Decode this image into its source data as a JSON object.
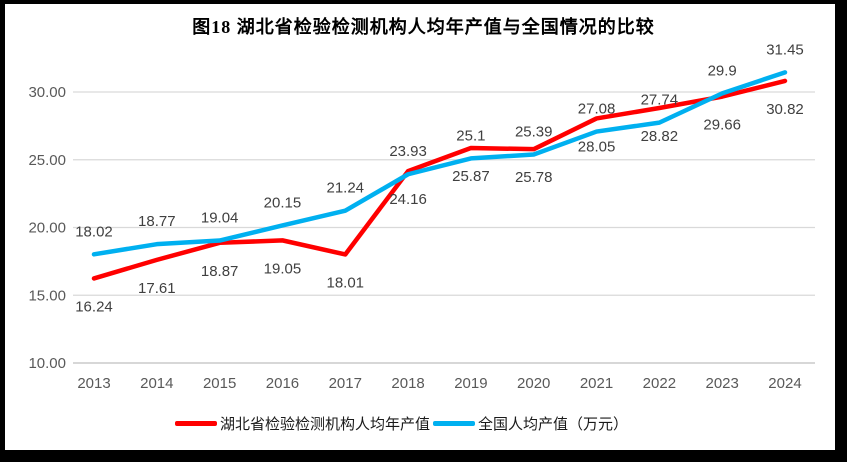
{
  "chart_data": {
    "type": "line",
    "title": "图18  湖北省检验检测机构人均年产值与全国情况的比较",
    "categories": [
      "2013",
      "2014",
      "2015",
      "2016",
      "2017",
      "2018",
      "2019",
      "2020",
      "2021",
      "2022",
      "2023",
      "2024"
    ],
    "series": [
      {
        "name": "湖北省检验检测机构人均年产值",
        "color": "#FF0000",
        "label_position": "below",
        "values": [
          16.24,
          17.61,
          18.87,
          19.05,
          18.01,
          24.16,
          25.87,
          25.78,
          28.05,
          28.82,
          29.66,
          30.82
        ],
        "labels": [
          "16.24",
          "17.61",
          "18.87",
          "19.05",
          "18.01",
          "24.16",
          "25.87",
          "25.78",
          "28.05",
          "28.82",
          "29.66",
          "30.82"
        ]
      },
      {
        "name": "全国人均产值（万元）",
        "color": "#00B0F0",
        "label_position": "above",
        "values": [
          18.02,
          18.77,
          19.04,
          20.15,
          21.24,
          23.93,
          25.1,
          25.39,
          27.08,
          27.74,
          29.9,
          31.45
        ],
        "labels": [
          "18.02",
          "18.77",
          "19.04",
          "20.15",
          "21.24",
          "23.93",
          "25.1",
          "25.39",
          "27.08",
          "27.74",
          "29.9",
          "31.45"
        ]
      }
    ],
    "yticks": [
      {
        "value": 10,
        "label": "10.00",
        "axis": true
      },
      {
        "value": 15,
        "label": "15.00",
        "axis": false
      },
      {
        "value": 20,
        "label": "20.00",
        "axis": false
      },
      {
        "value": 25,
        "label": "25.00",
        "axis": false
      },
      {
        "value": 30,
        "label": "30.00",
        "axis": false
      }
    ],
    "ylim": [
      10,
      32.5
    ],
    "xlabel": "",
    "ylabel": "",
    "grid": "horizontal",
    "legend_position": "bottom",
    "palette": {
      "gridline": "#D9D9D9",
      "axis_line": "#BFBFBF",
      "tick_text": "#595959",
      "data_label_text": "#404040"
    }
  }
}
